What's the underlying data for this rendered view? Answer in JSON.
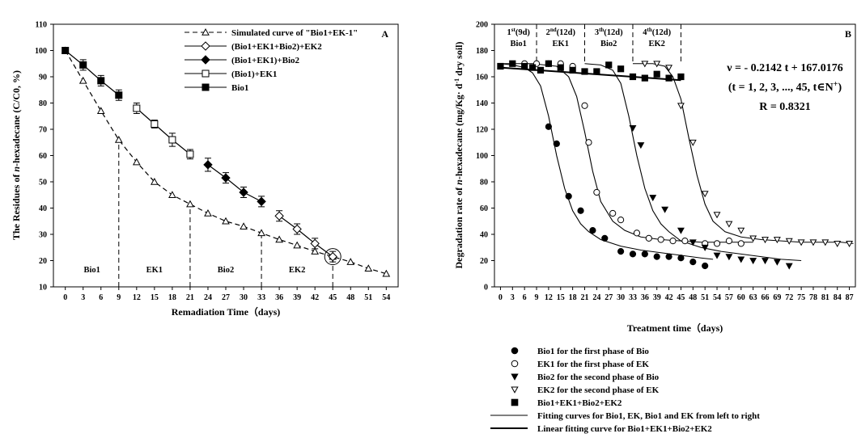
{
  "chart_data": [
    {
      "type": "line",
      "panel_label": "A",
      "xlabel": "Remadiation Time（days)",
      "ylabel_parts": [
        "The Residues of ",
        "n",
        "-hexadecane (C/C0, %)"
      ],
      "xlim": [
        -2,
        56
      ],
      "ylim": [
        10,
        110
      ],
      "xticks": [
        0,
        3,
        6,
        9,
        12,
        15,
        18,
        21,
        24,
        27,
        30,
        33,
        36,
        39,
        42,
        45,
        48,
        51,
        54
      ],
      "yticks": [
        10,
        20,
        30,
        40,
        50,
        60,
        70,
        80,
        90,
        100,
        110
      ],
      "phase_dividers_x": [
        9,
        21,
        33,
        45
      ],
      "phases": [
        {
          "label": "Bio1",
          "x": 4.5
        },
        {
          "label": "EK1",
          "x": 15
        },
        {
          "label": "Bio2",
          "x": 27
        },
        {
          "label": "EK2",
          "x": 39
        }
      ],
      "highlight_point": {
        "x": 45,
        "y": 21.5
      },
      "series": [
        {
          "name": "Simulated curve of \"Bio1+EK-1\"",
          "marker": "triangle-open",
          "dashed": true,
          "x": [
            0,
            3,
            6,
            9,
            12,
            15,
            18,
            21,
            24,
            27,
            30,
            33,
            36,
            39,
            42,
            45,
            48,
            51,
            54
          ],
          "y": [
            100,
            88.5,
            77,
            66,
            57.5,
            50,
            45,
            41.5,
            38,
            35,
            33,
            30.5,
            28,
            25.8,
            23.5,
            21.5,
            19.5,
            17,
            15
          ]
        },
        {
          "name": "(Bio1+EK1+Bio2)+EK2",
          "marker": "diamond-open",
          "dashed": false,
          "x": [
            36,
            39,
            42,
            45
          ],
          "y": [
            37,
            32,
            26.5,
            21.5
          ],
          "err": [
            2,
            2,
            2,
            2
          ]
        },
        {
          "name": "(Bio1+EK1)+Bio2",
          "marker": "diamond-filled",
          "dashed": false,
          "x": [
            24,
            27,
            30,
            33
          ],
          "y": [
            56.5,
            51.5,
            46,
            42.5
          ],
          "err": [
            2.5,
            2,
            2,
            2
          ]
        },
        {
          "name": "(Bio1)+EK1",
          "marker": "square-open",
          "dashed": false,
          "x": [
            12,
            15,
            18,
            21
          ],
          "y": [
            78,
            72,
            66,
            60.5
          ],
          "err": [
            2,
            1.5,
            2.5,
            1.8
          ]
        },
        {
          "name": "Bio1",
          "marker": "square-filled",
          "dashed": false,
          "x": [
            0,
            3,
            6,
            9
          ],
          "y": [
            100,
            94.5,
            88.5,
            83
          ],
          "err": [
            0.5,
            2,
            2,
            2
          ]
        }
      ]
    },
    {
      "type": "scatter",
      "panel_label": "B",
      "xlabel": "Treatment time（days)",
      "ylabel_parts": [
        "Degradation rate of ",
        "n",
        "-hexadecane (mg/Kg· d",
        "-1",
        " dry soil)"
      ],
      "xlim": [
        -1.5,
        88.5
      ],
      "ylim": [
        0,
        200
      ],
      "xticks": [
        0,
        3,
        6,
        9,
        12,
        15,
        18,
        21,
        24,
        27,
        30,
        33,
        36,
        39,
        42,
        45,
        48,
        51,
        54,
        57,
        60,
        63,
        66,
        69,
        72,
        75,
        78,
        81,
        84,
        87
      ],
      "yticks": [
        0,
        20,
        40,
        60,
        80,
        100,
        120,
        140,
        160,
        180,
        200
      ],
      "phase_dividers_x": [
        9,
        21,
        33,
        45
      ],
      "phases": [
        {
          "ord": "1",
          "sup": "st",
          "dur": "(9d)",
          "name": "Bio1",
          "x": 4.5
        },
        {
          "ord": "2",
          "sup": "nd",
          "dur": "(12d)",
          "name": "EK1",
          "x": 15
        },
        {
          "ord": "3",
          "sup": "th",
          "dur": "(12d)",
          "name": "Bio2",
          "x": 27
        },
        {
          "ord": "4",
          "sup": "th",
          "dur": "(12d)",
          "name": "EK2",
          "x": 39
        }
      ],
      "equation_line1": "ν = - 0.2142 t + 167.0176",
      "equation_line2_pre": "(t = 1, 2, 3, ..., 45, t∈N",
      "equation_line2_sup": "+",
      "equation_line2_post": ")",
      "equation_line3": "R = 0.8321",
      "linear_fit": {
        "slope": -0.2142,
        "intercept": 167.0176,
        "x_range": [
          0,
          45
        ]
      },
      "series": [
        {
          "name": "Bio1 for the first phase of Bio",
          "marker": "circle-filled",
          "x": [
            12,
            14,
            17,
            20,
            23,
            26,
            30,
            33,
            36,
            39,
            42,
            45,
            48,
            51
          ],
          "y": [
            122,
            109,
            69,
            58,
            43,
            37,
            27,
            25,
            25,
            23,
            23,
            22,
            19,
            16
          ],
          "fit_x": [
            0,
            3,
            6,
            8,
            10,
            12,
            14,
            16,
            18,
            20,
            22,
            25,
            30,
            35,
            40,
            45,
            50,
            53
          ],
          "fit_y": [
            170,
            169,
            167,
            163,
            153,
            130,
            100,
            75,
            58,
            48,
            42,
            36,
            31,
            28,
            26,
            24,
            22,
            21
          ]
        },
        {
          "name": "EK1 for the first phase of EK",
          "marker": "circle-open",
          "x": [
            6,
            9,
            12,
            15,
            18,
            21,
            22,
            24,
            28,
            30,
            34,
            37,
            40,
            43,
            46,
            51,
            54,
            57,
            60
          ],
          "y": [
            170,
            170,
            170,
            170,
            168,
            138,
            110,
            72,
            56,
            51,
            41,
            37,
            36,
            35,
            35,
            33,
            33,
            35,
            33
          ],
          "fit_x": [
            0,
            8,
            14,
            17,
            19,
            21,
            23,
            25,
            28,
            31,
            35,
            40,
            45,
            50,
            55,
            60,
            63
          ],
          "fit_y": [
            170,
            170,
            168,
            160,
            145,
            118,
            88,
            65,
            50,
            43,
            38,
            36,
            35,
            34,
            34,
            34,
            34
          ]
        },
        {
          "name": "Bio2 for the second phase of Bio",
          "marker": "triangle-down-filled",
          "x": [
            33,
            35,
            38,
            41,
            45,
            48,
            51,
            54,
            57,
            60,
            63,
            66,
            69,
            72
          ],
          "y": [
            121,
            108,
            68,
            59,
            43,
            34,
            30,
            24,
            23,
            21,
            20,
            20,
            19,
            16
          ],
          "fit_x": [
            21,
            25,
            28,
            30,
            32,
            34,
            36,
            38,
            40,
            42,
            45,
            50,
            55,
            60,
            65,
            70,
            75
          ],
          "fit_y": [
            170,
            169,
            165,
            155,
            130,
            100,
            75,
            58,
            48,
            42,
            35,
            30,
            27,
            25,
            23,
            21,
            20
          ]
        },
        {
          "name": "EK2 for the second phase of EK",
          "marker": "triangle-down-open",
          "x": [
            36,
            39,
            42,
            45,
            48,
            51,
            54,
            57,
            60,
            63,
            66,
            69,
            72,
            75,
            78,
            81,
            84,
            87
          ],
          "y": [
            170,
            170,
            167,
            138,
            110,
            71,
            55,
            48,
            43,
            37,
            36,
            36,
            35,
            34,
            34,
            34,
            33,
            33
          ],
          "fit_x": [
            33,
            38,
            41,
            43,
            45,
            47,
            49,
            51,
            53,
            56,
            60,
            65,
            70,
            75,
            80,
            85,
            88
          ],
          "fit_y": [
            170,
            170,
            168,
            160,
            143,
            113,
            85,
            63,
            50,
            42,
            38,
            36,
            35,
            34,
            34,
            34,
            33
          ]
        },
        {
          "name": "Bio1+EK1+Bio2+EK2",
          "marker": "square-filled",
          "x": [
            0,
            3,
            6,
            8,
            10,
            12,
            15,
            18,
            21,
            24,
            27,
            30,
            33,
            36,
            39,
            42,
            45
          ],
          "y": [
            168,
            170,
            168,
            167,
            165,
            170,
            167,
            165,
            164,
            164,
            169,
            166,
            160,
            159,
            162,
            159,
            160
          ]
        }
      ],
      "extra_legend": [
        {
          "name": "Fitting curves for Bio1, EK, Bio1 and EK from left to right",
          "line": "thin"
        },
        {
          "name": "Linear fitting curve for Bio1+EK1+Bio2+EK2",
          "line": "thick"
        }
      ]
    }
  ]
}
